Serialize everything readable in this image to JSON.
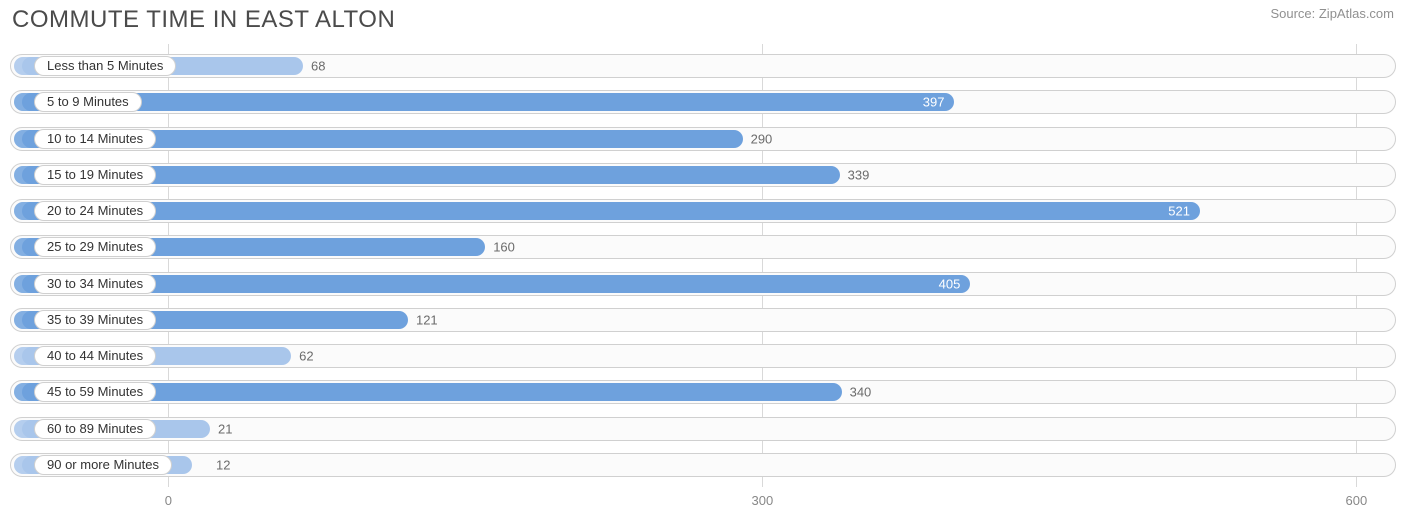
{
  "header": {
    "title": "COMMUTE TIME IN EAST ALTON",
    "source_prefix": "Source: ",
    "source_name": "ZipAtlas.com"
  },
  "chart": {
    "type": "bar",
    "orientation": "horizontal",
    "background_color": "#ffffff",
    "track_border_color": "#d0d0d0",
    "track_fill_color": "#fbfbfb",
    "grid_color": "#d9d9d9",
    "bar_color_light": "#a9c6eb",
    "bar_color_dark": "#6ea1dd",
    "value_text_inside_color": "#ffffff",
    "value_text_outside_color": "#6b6b6b",
    "category_label_text_color": "#333333",
    "title_color": "#4b4b4b",
    "source_color": "#909090",
    "title_fontsize": 24,
    "label_fontsize": 13,
    "x_min": -80,
    "x_max": 620,
    "x_ticks": [
      0,
      300,
      600
    ],
    "label_pill_right_edge_value": 20,
    "rows": [
      {
        "label": "Less than 5 Minutes",
        "value": 68
      },
      {
        "label": "5 to 9 Minutes",
        "value": 397
      },
      {
        "label": "10 to 14 Minutes",
        "value": 290
      },
      {
        "label": "15 to 19 Minutes",
        "value": 339
      },
      {
        "label": "20 to 24 Minutes",
        "value": 521
      },
      {
        "label": "25 to 29 Minutes",
        "value": 160
      },
      {
        "label": "30 to 34 Minutes",
        "value": 405
      },
      {
        "label": "35 to 39 Minutes",
        "value": 121
      },
      {
        "label": "40 to 44 Minutes",
        "value": 62
      },
      {
        "label": "45 to 59 Minutes",
        "value": 340
      },
      {
        "label": "60 to 89 Minutes",
        "value": 21
      },
      {
        "label": "90 or more Minutes",
        "value": 12
      }
    ]
  }
}
